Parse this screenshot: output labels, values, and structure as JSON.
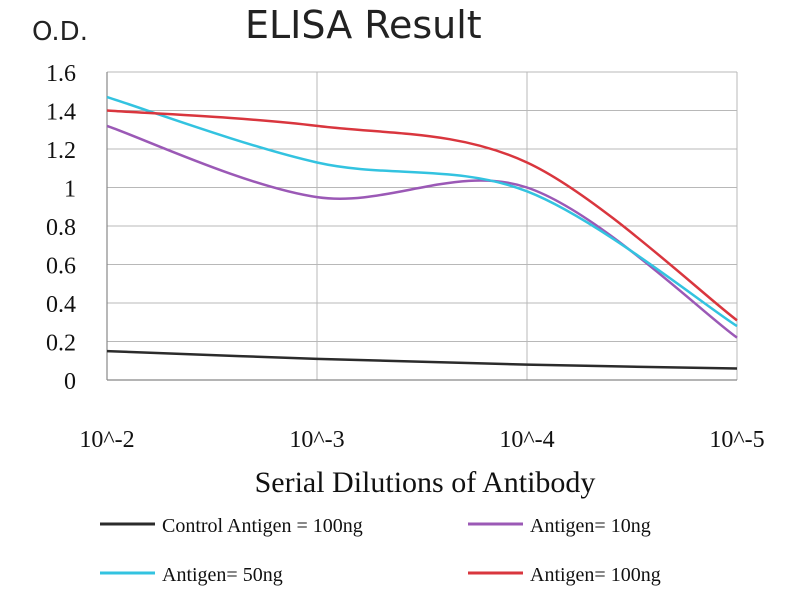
{
  "chart_data": {
    "type": "line",
    "title": "ELISA Result",
    "ylabel": "O.D.",
    "xlabel": "Serial Dilutions of Antibody",
    "x": [
      "10^-2",
      "10^-3",
      "10^-4",
      "10^-5"
    ],
    "ylim": [
      0,
      1.6
    ],
    "yticks": [
      "0",
      "0.2",
      "0.4",
      "0.6",
      "0.8",
      "1",
      "1.2",
      "1.4",
      "1.6"
    ],
    "grid": true,
    "legend_position": "bottom",
    "series": [
      {
        "name": "Control Antigen = 100ng",
        "color": "#2b2b2b",
        "values": [
          0.15,
          0.11,
          0.08,
          0.06
        ]
      },
      {
        "name": "Antigen= 10ng",
        "color": "#9b59b6",
        "values": [
          1.32,
          0.95,
          1.0,
          0.22
        ]
      },
      {
        "name": "Antigen= 50ng",
        "color": "#33c3e0",
        "values": [
          1.47,
          1.13,
          0.98,
          0.28
        ]
      },
      {
        "name": "Antigen= 100ng",
        "color": "#d9363e",
        "values": [
          1.4,
          1.32,
          1.13,
          0.31
        ]
      }
    ]
  }
}
